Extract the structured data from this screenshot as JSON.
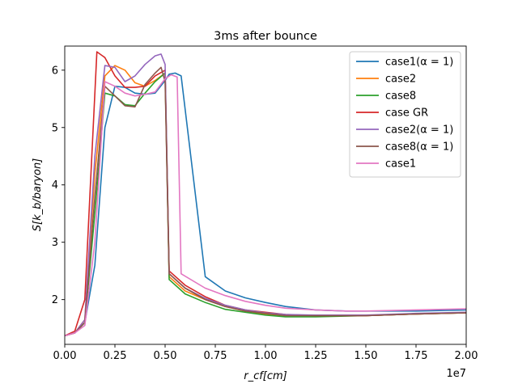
{
  "chart_data": {
    "type": "line",
    "title": "3ms after bounce",
    "xlabel": "r_cf[cm]",
    "ylabel": "S[k_b/baryon]",
    "x_offset_text": "1e7",
    "xlim": [
      0,
      2.0
    ],
    "ylim": [
      1.22,
      6.42
    ],
    "x_ticks": [
      "0.00",
      "0.25",
      "0.50",
      "0.75",
      "1.00",
      "1.25",
      "1.50",
      "1.75",
      "2.00"
    ],
    "y_ticks": [
      "2",
      "3",
      "4",
      "5",
      "6"
    ],
    "grid": false,
    "legend_position": "upper right",
    "series": [
      {
        "name": "case1(α = 1)",
        "color": "#1f77b4",
        "x": [
          0,
          0.05,
          0.1,
          0.15,
          0.2,
          0.25,
          0.3,
          0.35,
          0.4,
          0.45,
          0.5,
          0.52,
          0.55,
          0.58,
          0.7,
          0.8,
          0.9,
          1.0,
          1.1,
          1.25,
          1.4,
          1.5,
          1.75,
          2.0
        ],
        "y": [
          1.37,
          1.42,
          1.6,
          2.6,
          5.0,
          5.72,
          5.7,
          5.6,
          5.58,
          5.6,
          5.82,
          5.93,
          5.95,
          5.9,
          2.4,
          2.15,
          2.03,
          1.95,
          1.88,
          1.82,
          1.8,
          1.8,
          1.8,
          1.82
        ]
      },
      {
        "name": "case2",
        "color": "#ff7f0e",
        "x": [
          0,
          0.05,
          0.1,
          0.15,
          0.2,
          0.25,
          0.3,
          0.35,
          0.4,
          0.45,
          0.5,
          0.52,
          0.6,
          0.7,
          0.8,
          0.9,
          1.0,
          1.1,
          1.25,
          1.5,
          1.75,
          2.0
        ],
        "y": [
          1.37,
          1.42,
          1.65,
          4.2,
          5.9,
          6.08,
          6.0,
          5.78,
          5.72,
          5.82,
          5.95,
          2.4,
          2.15,
          2.0,
          1.88,
          1.8,
          1.75,
          1.72,
          1.72,
          1.72,
          1.75,
          1.77
        ]
      },
      {
        "name": "case8",
        "color": "#2ca02c",
        "x": [
          0,
          0.05,
          0.1,
          0.15,
          0.2,
          0.25,
          0.3,
          0.35,
          0.4,
          0.45,
          0.5,
          0.52,
          0.6,
          0.7,
          0.8,
          0.9,
          1.0,
          1.1,
          1.25,
          1.5,
          1.75,
          2.0
        ],
        "y": [
          1.37,
          1.42,
          1.6,
          3.5,
          5.6,
          5.55,
          5.4,
          5.38,
          5.6,
          5.8,
          5.95,
          2.35,
          2.1,
          1.95,
          1.83,
          1.78,
          1.73,
          1.7,
          1.7,
          1.72,
          1.75,
          1.77
        ]
      },
      {
        "name": "case GR",
        "color": "#d62728",
        "x": [
          0,
          0.05,
          0.1,
          0.16,
          0.2,
          0.25,
          0.3,
          0.35,
          0.4,
          0.45,
          0.5,
          0.52,
          0.6,
          0.7,
          0.8,
          0.9,
          1.0,
          1.1,
          1.25,
          1.5,
          1.75,
          2.0
        ],
        "y": [
          1.37,
          1.45,
          2.0,
          6.32,
          6.22,
          5.9,
          5.7,
          5.7,
          5.72,
          5.9,
          6.0,
          2.5,
          2.25,
          2.05,
          1.9,
          1.82,
          1.78,
          1.74,
          1.72,
          1.72,
          1.75,
          1.77
        ]
      },
      {
        "name": "case2(α = 1)",
        "color": "#9467bd",
        "x": [
          0,
          0.05,
          0.1,
          0.15,
          0.2,
          0.25,
          0.3,
          0.35,
          0.4,
          0.45,
          0.48,
          0.5,
          0.52,
          0.6,
          0.7,
          0.8,
          0.9,
          1.0,
          1.1,
          1.25,
          1.5,
          1.75,
          2.0
        ],
        "y": [
          1.37,
          1.42,
          1.65,
          4.5,
          6.08,
          6.05,
          5.8,
          5.9,
          6.1,
          6.25,
          6.28,
          6.1,
          2.45,
          2.2,
          2.02,
          1.9,
          1.82,
          1.77,
          1.74,
          1.73,
          1.73,
          1.76,
          1.78
        ]
      },
      {
        "name": "case8(α = 1)",
        "color": "#8c564b",
        "x": [
          0,
          0.05,
          0.1,
          0.15,
          0.2,
          0.25,
          0.3,
          0.35,
          0.4,
          0.45,
          0.48,
          0.5,
          0.52,
          0.6,
          0.7,
          0.8,
          0.9,
          1.0,
          1.1,
          1.25,
          1.5,
          1.75,
          2.0
        ],
        "y": [
          1.37,
          1.42,
          1.6,
          3.8,
          5.72,
          5.55,
          5.38,
          5.36,
          5.75,
          5.95,
          6.05,
          5.8,
          2.45,
          2.2,
          2.0,
          1.88,
          1.8,
          1.76,
          1.72,
          1.72,
          1.72,
          1.75,
          1.77
        ]
      },
      {
        "name": "case1",
        "color": "#e377c2",
        "x": [
          0,
          0.05,
          0.1,
          0.15,
          0.2,
          0.25,
          0.3,
          0.35,
          0.4,
          0.45,
          0.5,
          0.53,
          0.56,
          0.58,
          0.7,
          0.8,
          0.9,
          1.0,
          1.1,
          1.25,
          1.4,
          1.5,
          1.75,
          2.0
        ],
        "y": [
          1.37,
          1.42,
          1.55,
          3.0,
          5.8,
          5.72,
          5.6,
          5.55,
          5.58,
          5.62,
          5.85,
          5.92,
          5.88,
          2.45,
          2.2,
          2.07,
          1.97,
          1.9,
          1.85,
          1.82,
          1.8,
          1.8,
          1.82,
          1.84
        ]
      }
    ]
  }
}
